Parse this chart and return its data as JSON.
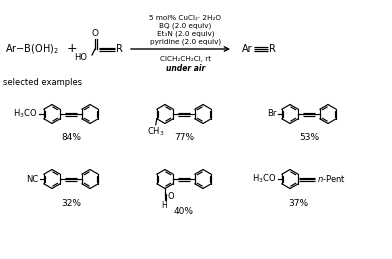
{
  "bg_color": "#ffffff",
  "reaction_conditions_above": [
    "5 mol% CuCl₂· 2H₂O",
    "BQ (2.0 equiv)",
    "Et₃N (2.0 equiv)",
    "pyridine (2.0 equiv)"
  ],
  "reaction_conditions_below": [
    "ClCH₂CH₂Cl, rt",
    "under air"
  ],
  "selected_examples_label": "selected examples",
  "yields": [
    "84%",
    "77%",
    "53%",
    "32%",
    "40%",
    "37%"
  ],
  "text_color": "#000000",
  "line_color": "#000000",
  "fig_w": 3.92,
  "fig_h": 2.59,
  "dpi": 100
}
